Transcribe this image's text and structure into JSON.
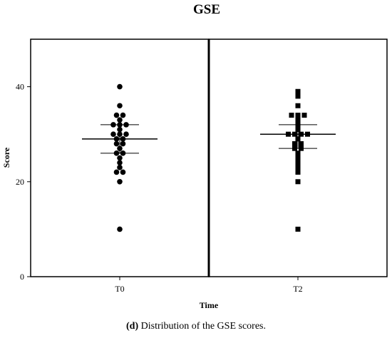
{
  "chart_data": {
    "type": "scatter",
    "title": "GSE",
    "xlabel": "Time",
    "ylabel": "Score",
    "ylim": [
      0,
      50
    ],
    "yticks": [
      0,
      20,
      40
    ],
    "panels": [
      {
        "name": "T0",
        "marker": "circle",
        "mean": 29,
        "error_upper": 32,
        "error_lower": 26,
        "values": [
          40,
          36,
          34,
          34,
          33,
          32,
          32,
          32,
          31,
          30,
          30,
          30,
          29,
          29,
          28,
          28,
          27,
          26,
          26,
          25,
          24,
          23,
          22,
          22,
          20,
          10
        ]
      },
      {
        "name": "T2",
        "marker": "square",
        "mean": 30,
        "error_upper": 32,
        "error_lower": 27,
        "values": [
          39,
          38,
          36,
          34,
          34,
          34,
          33,
          32,
          31,
          30,
          30,
          30,
          30,
          29,
          28,
          28,
          27,
          27,
          26,
          25,
          24,
          23,
          22,
          20,
          10
        ]
      }
    ]
  },
  "caption": {
    "letter": "d",
    "text": " Distribution of the GSE scores."
  }
}
